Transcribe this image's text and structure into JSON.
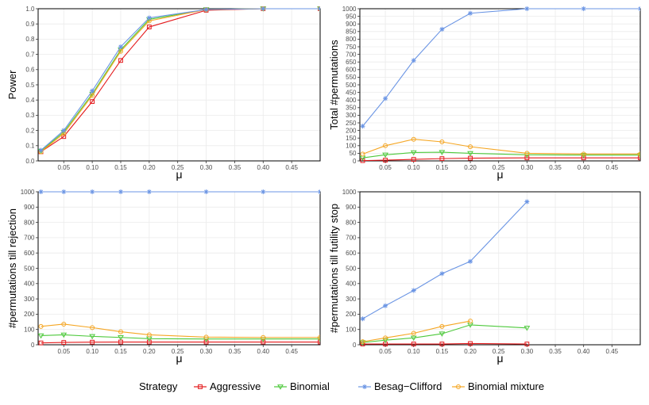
{
  "colors": {
    "Aggressive": "#e41a1c",
    "Binomial": "#4dc93b",
    "Besag-Clifford": "#6b95e4",
    "Binomial mixture": "#f5a623",
    "grid": "#ebebeb",
    "tick_text": "#4d4d4d"
  },
  "legend": {
    "title": "Strategy",
    "items": [
      {
        "name": "Aggressive",
        "marker": "square"
      },
      {
        "name": "Binomial",
        "marker": "triangle-down"
      },
      {
        "name": "Besag−Clifford",
        "marker": "asterisk"
      },
      {
        "name": "Binomial mixture",
        "marker": "circle"
      }
    ]
  },
  "chart_data": [
    {
      "type": "line",
      "id": "power",
      "xlabel": "μ",
      "ylabel": "Power",
      "xlim": [
        0.005,
        0.5
      ],
      "ylim": [
        0,
        1.0
      ],
      "xticks": [
        0.05,
        0.1,
        0.15,
        0.2,
        0.25,
        0.3,
        0.35,
        0.4,
        0.45
      ],
      "xtick_labels": [
        "0.05",
        "0.10",
        "0.15",
        "0.20",
        "0.25",
        "0.30",
        "0.35",
        "0.40",
        "0.45"
      ],
      "yticks": [
        0,
        0.1,
        0.2,
        0.3,
        0.4,
        0.5,
        0.6,
        0.7,
        0.8,
        0.9,
        1.0
      ],
      "ytick_labels": [
        "0.0",
        "0.1",
        "0.2",
        "0.3",
        "0.4",
        "0.5",
        "0.6",
        "0.7",
        "0.8",
        "0.9",
        "1.0"
      ],
      "series": [
        {
          "name": "Aggressive",
          "x": [
            0.01,
            0.05,
            0.1,
            0.15,
            0.2,
            0.3,
            0.4,
            0.5
          ],
          "y": [
            0.06,
            0.16,
            0.39,
            0.66,
            0.88,
            0.99,
            1.0,
            1.0
          ]
        },
        {
          "name": "Binomial",
          "x": [
            0.01,
            0.05,
            0.1,
            0.15,
            0.2,
            0.3,
            0.4,
            0.5
          ],
          "y": [
            0.065,
            0.19,
            0.44,
            0.73,
            0.93,
            0.995,
            1.0,
            1.0
          ]
        },
        {
          "name": "Besag-Clifford",
          "x": [
            0.01,
            0.05,
            0.1,
            0.15,
            0.2,
            0.3,
            0.4,
            0.5
          ],
          "y": [
            0.07,
            0.2,
            0.46,
            0.75,
            0.94,
            0.995,
            1.0,
            1.0
          ]
        },
        {
          "name": "Binomial mixture",
          "x": [
            0.01,
            0.05,
            0.1,
            0.15,
            0.2,
            0.3,
            0.4,
            0.5
          ],
          "y": [
            0.06,
            0.18,
            0.43,
            0.72,
            0.92,
            0.995,
            1.0,
            1.0
          ]
        }
      ]
    },
    {
      "type": "line",
      "id": "total-permutations",
      "xlabel": "μ",
      "ylabel": "Total #permutations",
      "xlim": [
        0.005,
        0.5
      ],
      "ylim": [
        0,
        1000
      ],
      "xticks": [
        0.05,
        0.1,
        0.15,
        0.2,
        0.25,
        0.3,
        0.35,
        0.4,
        0.45
      ],
      "xtick_labels": [
        "0.05",
        "0.10",
        "0.15",
        "0.20",
        "0.25",
        "0.30",
        "0.35",
        "0.40",
        "0.45"
      ],
      "yticks": [
        0,
        50,
        100,
        150,
        200,
        250,
        300,
        350,
        400,
        450,
        500,
        550,
        600,
        650,
        700,
        750,
        800,
        850,
        900,
        950,
        1000
      ],
      "ytick_labels": [
        "0",
        "50",
        "100",
        "150",
        "200",
        "250",
        "300",
        "350",
        "400",
        "450",
        "500",
        "550",
        "600",
        "650",
        "700",
        "750",
        "800",
        "850",
        "900",
        "950",
        "1000"
      ],
      "series": [
        {
          "name": "Aggressive",
          "x": [
            0.01,
            0.05,
            0.1,
            0.15,
            0.2,
            0.3,
            0.4,
            0.5
          ],
          "y": [
            2,
            5,
            10,
            15,
            18,
            20,
            20,
            20
          ]
        },
        {
          "name": "Binomial",
          "x": [
            0.01,
            0.05,
            0.1,
            0.15,
            0.2,
            0.3,
            0.4,
            0.5
          ],
          "y": [
            20,
            40,
            55,
            57,
            50,
            40,
            38,
            38
          ]
        },
        {
          "name": "Besag-Clifford",
          "x": [
            0.01,
            0.05,
            0.1,
            0.15,
            0.2,
            0.3,
            0.4,
            0.5
          ],
          "y": [
            228,
            410,
            660,
            865,
            970,
            1000,
            1000,
            1000
          ]
        },
        {
          "name": "Binomial mixture",
          "x": [
            0.01,
            0.05,
            0.1,
            0.15,
            0.2,
            0.3,
            0.4,
            0.5
          ],
          "y": [
            45,
            100,
            142,
            125,
            93,
            50,
            45,
            45
          ]
        }
      ]
    },
    {
      "type": "line",
      "id": "permutations-till-rejection",
      "xlabel": "μ",
      "ylabel": "#permutations till rejection",
      "xlim": [
        0.005,
        0.5
      ],
      "ylim": [
        0,
        1000
      ],
      "xticks": [
        0.05,
        0.1,
        0.15,
        0.2,
        0.25,
        0.3,
        0.35,
        0.4,
        0.45
      ],
      "xtick_labels": [
        "0.05",
        "0.10",
        "0.15",
        "0.20",
        "0.25",
        "0.30",
        "0.35",
        "0.40",
        "0.45"
      ],
      "yticks": [
        0,
        100,
        200,
        300,
        400,
        500,
        600,
        700,
        800,
        900,
        1000
      ],
      "ytick_labels": [
        "0",
        "100",
        "200",
        "300",
        "400",
        "500",
        "600",
        "700",
        "800",
        "900",
        "1000"
      ],
      "series": [
        {
          "name": "Aggressive",
          "x": [
            0.01,
            0.05,
            0.1,
            0.15,
            0.2,
            0.3,
            0.4,
            0.5
          ],
          "y": [
            12,
            15,
            17,
            18,
            18,
            18,
            18,
            18
          ]
        },
        {
          "name": "Binomial",
          "x": [
            0.01,
            0.05,
            0.1,
            0.15,
            0.2,
            0.3,
            0.4,
            0.5
          ],
          "y": [
            60,
            65,
            55,
            48,
            40,
            38,
            38,
            38
          ]
        },
        {
          "name": "Besag-Clifford",
          "x": [
            0.01,
            0.05,
            0.1,
            0.15,
            0.2,
            0.3,
            0.4,
            0.5
          ],
          "y": [
            1000,
            1000,
            1000,
            1000,
            1000,
            1000,
            1000,
            1000
          ]
        },
        {
          "name": "Binomial mixture",
          "x": [
            0.01,
            0.05,
            0.1,
            0.15,
            0.2,
            0.3,
            0.4,
            0.5
          ],
          "y": [
            120,
            135,
            112,
            85,
            65,
            50,
            48,
            48
          ]
        }
      ]
    },
    {
      "type": "line",
      "id": "permutations-till-futility-stop",
      "xlabel": "μ",
      "ylabel": "#permutations till futility stop",
      "xlim": [
        0.005,
        0.5
      ],
      "ylim": [
        0,
        1000
      ],
      "xticks": [
        0.05,
        0.1,
        0.15,
        0.2,
        0.25,
        0.3,
        0.35,
        0.4,
        0.45
      ],
      "xtick_labels": [
        "0.05",
        "0.10",
        "0.15",
        "0.20",
        "0.25",
        "0.30",
        "0.35",
        "0.40",
        "0.45"
      ],
      "yticks": [
        0,
        100,
        200,
        300,
        400,
        500,
        600,
        700,
        800,
        900,
        1000
      ],
      "ytick_labels": [
        "0",
        "100",
        "200",
        "300",
        "400",
        "500",
        "600",
        "700",
        "800",
        "900",
        "1000"
      ],
      "series": [
        {
          "name": "Aggressive",
          "x": [
            0.01,
            0.05,
            0.1,
            0.15,
            0.2,
            0.3
          ],
          "y": [
            5,
            5,
            5,
            5,
            8,
            5
          ]
        },
        {
          "name": "Binomial",
          "x": [
            0.01,
            0.05,
            0.1,
            0.15,
            0.2,
            0.3
          ],
          "y": [
            15,
            30,
            45,
            72,
            130,
            110
          ]
        },
        {
          "name": "Besag-Clifford",
          "x": [
            0.01,
            0.05,
            0.1,
            0.15,
            0.2,
            0.3
          ],
          "y": [
            170,
            255,
            355,
            465,
            545,
            935
          ]
        },
        {
          "name": "Binomial mixture",
          "x": [
            0.01,
            0.05,
            0.1,
            0.15,
            0.2
          ],
          "y": [
            20,
            45,
            75,
            120,
            155
          ]
        }
      ]
    }
  ]
}
